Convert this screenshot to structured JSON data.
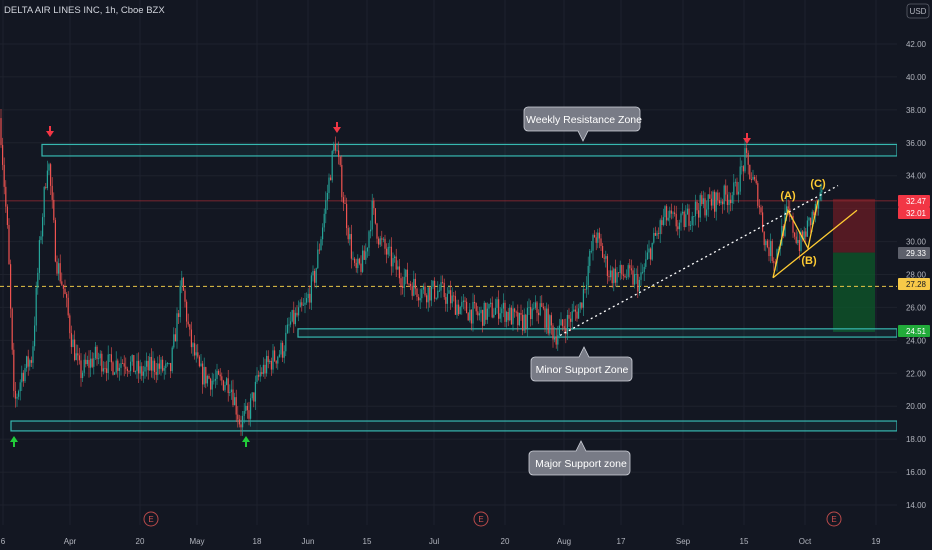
{
  "header": {
    "title": "DELTA AIR LINES INC, 1h, Cboe BZX",
    "currency": "USD"
  },
  "colors": {
    "background": "#131722",
    "zone": "#36b8b0",
    "up": "#26a69a",
    "down": "#ef5350",
    "red_arrow": "#f23645",
    "green_arrow": "#22cc3a",
    "wave": "#ffcc33",
    "callout_bg": "#787b86",
    "callout_text": "#ffffff"
  },
  "chart_data": {
    "type": "candlestick",
    "yaxis": {
      "ticks": [
        "42.00",
        "40.00",
        "38.00",
        "36.00",
        "34.00",
        "32.00",
        "30.00",
        "28.00",
        "26.00",
        "24.00",
        "22.00",
        "20.00",
        "18.00",
        "16.00",
        "14.00"
      ],
      "range": [
        13,
        43.5
      ]
    },
    "xaxis": {
      "ticks": [
        "6",
        "Apr",
        "20",
        "May",
        "18",
        "Jun",
        "15",
        "Jul",
        "20",
        "Aug",
        "17",
        "Sep",
        "15",
        "Oct",
        "19"
      ]
    },
    "price_path": [
      [
        0,
        37.5
      ],
      [
        8,
        30
      ],
      [
        14,
        20
      ],
      [
        22,
        22
      ],
      [
        32,
        23
      ],
      [
        40,
        30
      ],
      [
        48,
        35.3
      ],
      [
        56,
        29
      ],
      [
        64,
        27
      ],
      [
        72,
        24
      ],
      [
        80,
        22
      ],
      [
        95,
        23
      ],
      [
        110,
        22.5
      ],
      [
        125,
        22.8
      ],
      [
        140,
        22
      ],
      [
        155,
        22.5
      ],
      [
        170,
        22
      ],
      [
        182,
        27.5
      ],
      [
        190,
        24
      ],
      [
        200,
        22
      ],
      [
        215,
        21.5
      ],
      [
        230,
        21.5
      ],
      [
        240,
        19
      ],
      [
        248,
        19.5
      ],
      [
        260,
        22
      ],
      [
        275,
        23
      ],
      [
        283,
        23.5
      ],
      [
        290,
        25
      ],
      [
        305,
        26
      ],
      [
        315,
        28
      ],
      [
        325,
        32
      ],
      [
        335,
        36.2
      ],
      [
        345,
        32
      ],
      [
        355,
        28
      ],
      [
        365,
        29
      ],
      [
        372,
        32
      ],
      [
        380,
        30
      ],
      [
        400,
        28
      ],
      [
        420,
        27
      ],
      [
        440,
        27
      ],
      [
        460,
        26
      ],
      [
        480,
        25.5
      ],
      [
        500,
        26
      ],
      [
        520,
        25
      ],
      [
        540,
        26
      ],
      [
        555,
        24.3
      ],
      [
        565,
        25
      ],
      [
        580,
        26
      ],
      [
        595,
        30.5
      ],
      [
        610,
        28
      ],
      [
        625,
        28
      ],
      [
        640,
        27.5
      ],
      [
        650,
        29.5
      ],
      [
        665,
        31.5
      ],
      [
        680,
        31
      ],
      [
        695,
        32
      ],
      [
        715,
        32.5
      ],
      [
        735,
        33
      ],
      [
        745,
        35
      ],
      [
        758,
        32.8
      ],
      [
        765,
        30
      ],
      [
        775,
        29
      ],
      [
        787,
        31.7
      ],
      [
        800,
        29.8
      ],
      [
        812,
        31.5
      ],
      [
        822,
        32.5
      ]
    ],
    "last_price": "32.47",
    "price_labels": [
      {
        "value": "32.47",
        "style": "red"
      },
      {
        "value": "32.01",
        "style": "red"
      },
      {
        "value": "29.33",
        "style": "gray"
      },
      {
        "value": "27.28",
        "style": "yellow"
      },
      {
        "value": "24.51",
        "style": "green"
      }
    ],
    "zones": [
      {
        "name": "Weekly Resistance Zone",
        "from": 35.2,
        "to": 35.9
      },
      {
        "name": "Minor Support Zone",
        "from": 24.2,
        "to": 24.7
      },
      {
        "name": "Major Support zone",
        "from": 18.5,
        "to": 19.1
      }
    ],
    "waves": [
      "(A)",
      "(B)",
      "(C)"
    ],
    "horizontal_levels": [
      27.28,
      32.47
    ],
    "position": {
      "entry": 29.33,
      "target": 24.51,
      "stop": 32.47
    },
    "events": [
      "E",
      "E",
      "E"
    ]
  },
  "annotations": {
    "resistance_label": "Weekly Resistance Zone",
    "minor_support_label": "Minor Support Zone",
    "major_support_label": "Major Support zone"
  }
}
